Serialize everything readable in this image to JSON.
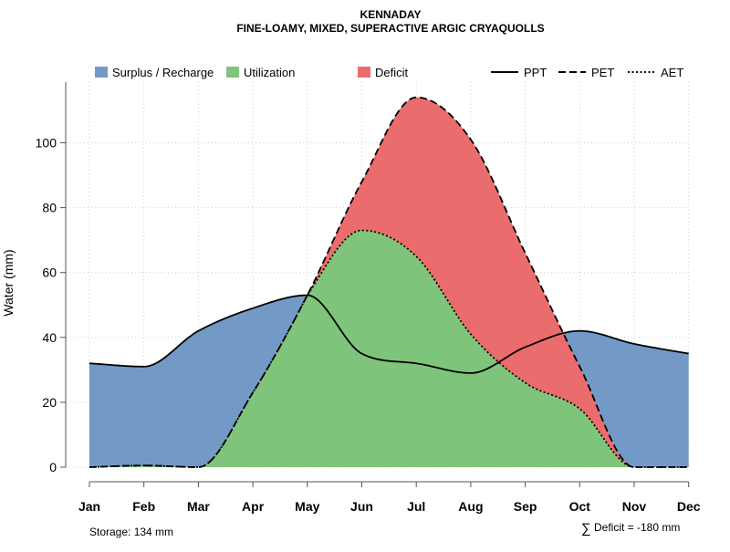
{
  "chart_data": {
    "type": "area",
    "title": "KENNADAY",
    "subtitle": "FINE-LOAMY, MIXED, SUPERACTIVE ARGIC CRYAQUOLLS",
    "ylabel": "Water (mm)",
    "xlabel": "",
    "ylim": [
      0,
      117
    ],
    "yticks": [
      0,
      20,
      40,
      60,
      80,
      100
    ],
    "categories": [
      "Jan",
      "Feb",
      "Mar",
      "Apr",
      "May",
      "Jun",
      "Jul",
      "Aug",
      "Sep",
      "Oct",
      "Nov",
      "Dec"
    ],
    "series": [
      {
        "name": "PPT",
        "style": "solid",
        "values": [
          32,
          31,
          42,
          49,
          53,
          35,
          32,
          29,
          37,
          42,
          38,
          35
        ]
      },
      {
        "name": "PET",
        "style": "dashed",
        "values": [
          0,
          0.5,
          0,
          23,
          53,
          88,
          114,
          101,
          66,
          31,
          0,
          0
        ]
      },
      {
        "name": "AET",
        "style": "dotted",
        "values": [
          0,
          0.5,
          0,
          23,
          53,
          73,
          65,
          41,
          26,
          18,
          0,
          0
        ]
      }
    ],
    "legend": [
      {
        "label": "Surplus / Recharge",
        "kind": "area",
        "color": "#7399C6"
      },
      {
        "label": "Utilization",
        "kind": "area",
        "color": "#7FC47B"
      },
      {
        "label": "Deficit",
        "kind": "area",
        "color": "#EB6C6C"
      },
      {
        "label": "PPT",
        "kind": "line",
        "style": "solid"
      },
      {
        "label": "PET",
        "kind": "line",
        "style": "dashed"
      },
      {
        "label": "AET",
        "kind": "line",
        "style": "dotted"
      }
    ],
    "annotations": {
      "storage": "Storage: 134 mm",
      "deficit_symbol": "∑",
      "deficit": "Deficit = -180 mm"
    },
    "colors": {
      "surplus": "#7399C6",
      "utilization": "#7FC47B",
      "deficit": "#EB6C6C",
      "grid": "#d0d0d0",
      "axis": "#555555"
    }
  }
}
